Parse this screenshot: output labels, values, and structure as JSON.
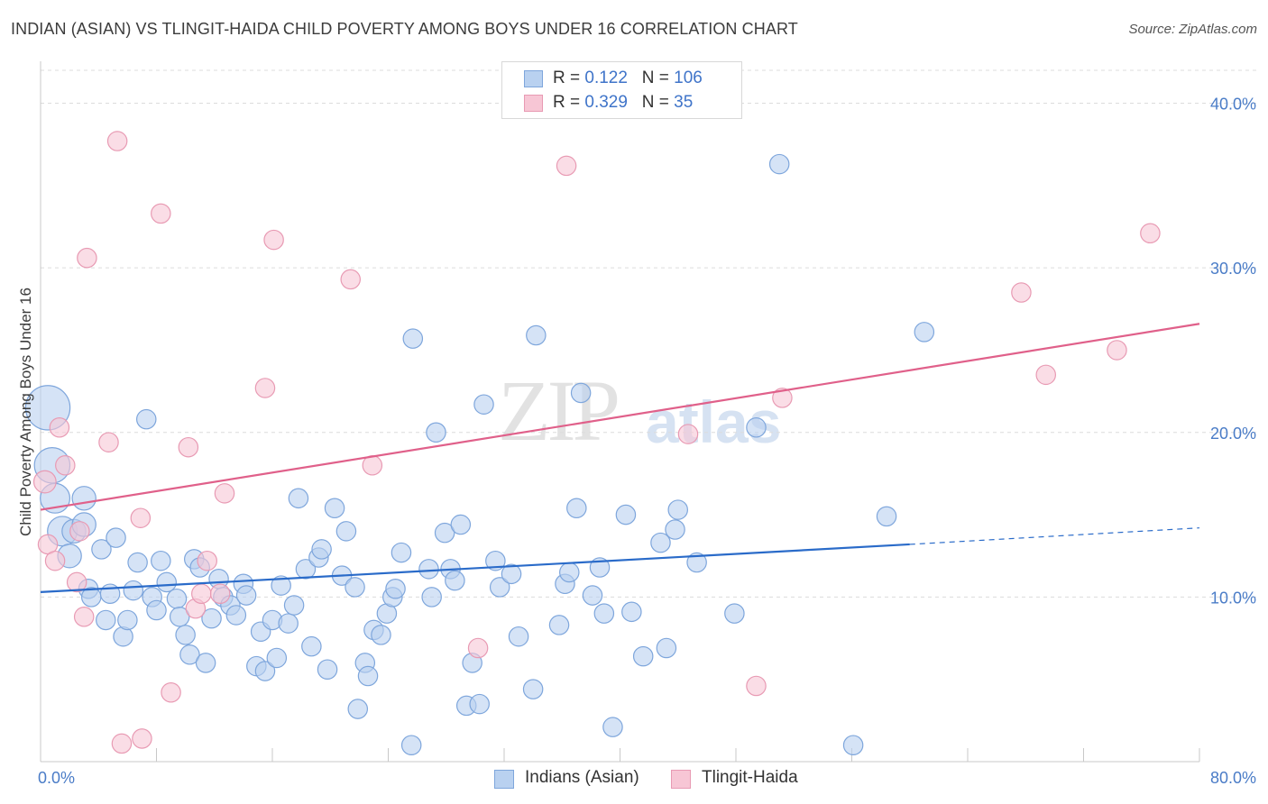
{
  "title": "INDIAN (ASIAN) VS TLINGIT-HAIDA CHILD POVERTY AMONG BOYS UNDER 16 CORRELATION CHART",
  "source": "Source: ZipAtlas.com",
  "watermark": {
    "zip": "ZIP",
    "atlas": "atlas"
  },
  "legend": {
    "row1": {
      "r_label": "R = ",
      "r_value": "0.122",
      "n_label": "N = ",
      "n_value": "106"
    },
    "row2": {
      "r_label": "R = ",
      "r_value": "0.329",
      "n_label": "N = ",
      "n_value": "35"
    }
  },
  "bottom_legend": {
    "series1": "Indians (Asian)",
    "series2": "Tlingit-Haida"
  },
  "colors": {
    "blue_fill": "#b9d1f0",
    "blue_stroke": "#7ea6dc",
    "blue_line": "#2a6bc9",
    "pink_fill": "#f7c6d5",
    "pink_stroke": "#e89ab3",
    "pink_line": "#e0608a",
    "axis_text": "#4a7cc7",
    "grid": "#dcdcdc"
  },
  "chart_data": {
    "type": "scatter",
    "title": "INDIAN (ASIAN) VS TLINGIT-HAIDA CHILD POVERTY AMONG BOYS UNDER 16 CORRELATION CHART",
    "xlabel": "",
    "ylabel": "Child Poverty Among Boys Under 16",
    "xlim": [
      0,
      80
    ],
    "ylim": [
      0,
      42
    ],
    "x_tick_labels": [
      "0.0%",
      "80.0%"
    ],
    "y_tick_labels": [
      "10.0%",
      "20.0%",
      "30.0%",
      "40.0%"
    ],
    "y_ticks": [
      10,
      20,
      30,
      40
    ],
    "grid": true,
    "legend_position": "top-center",
    "series": [
      {
        "name": "Indians (Asian)",
        "r": 0.122,
        "n": 106,
        "trend": {
          "x0": 0,
          "y0": 10.3,
          "x1": 60,
          "y1": 13.2,
          "dash_to_x": 80,
          "dash_to_y": 14.2
        },
        "points": [
          [
            0.5,
            21.5,
            3
          ],
          [
            0.8,
            18,
            2.4
          ],
          [
            1,
            16,
            2
          ],
          [
            1.5,
            14,
            2
          ],
          [
            2,
            12.5,
            1.6
          ],
          [
            2.3,
            14,
            1.6
          ],
          [
            3,
            16,
            1.6
          ],
          [
            3,
            14.4,
            1.6
          ],
          [
            3.3,
            10.5,
            1.3
          ],
          [
            3.5,
            10,
            1.3
          ],
          [
            4.2,
            12.9,
            1.3
          ],
          [
            4.5,
            8.6,
            1.3
          ],
          [
            4.8,
            10.2,
            1.3
          ],
          [
            5.2,
            13.6,
            1.3
          ],
          [
            5.7,
            7.6,
            1.3
          ],
          [
            6,
            8.6,
            1.3
          ],
          [
            6.4,
            10.4,
            1.3
          ],
          [
            6.7,
            12.1,
            1.3
          ],
          [
            7.3,
            20.8,
            1.3
          ],
          [
            7.7,
            10,
            1.3
          ],
          [
            8,
            9.2,
            1.3
          ],
          [
            8.3,
            12.2,
            1.3
          ],
          [
            8.7,
            10.9,
            1.3
          ],
          [
            9.4,
            9.9,
            1.3
          ],
          [
            9.6,
            8.8,
            1.3
          ],
          [
            10,
            7.7,
            1.3
          ],
          [
            10.3,
            6.5,
            1.3
          ],
          [
            10.6,
            12.3,
            1.3
          ],
          [
            11,
            11.8,
            1.3
          ],
          [
            11.4,
            6,
            1.3
          ],
          [
            11.8,
            8.7,
            1.3
          ],
          [
            12.3,
            11.1,
            1.3
          ],
          [
            12.6,
            10,
            1.3
          ],
          [
            13.1,
            9.5,
            1.3
          ],
          [
            13.5,
            8.9,
            1.3
          ],
          [
            14,
            10.8,
            1.3
          ],
          [
            14.2,
            10.1,
            1.3
          ],
          [
            14.9,
            5.8,
            1.3
          ],
          [
            15.2,
            7.9,
            1.3
          ],
          [
            15.5,
            5.5,
            1.3
          ],
          [
            16,
            8.6,
            1.3
          ],
          [
            16.3,
            6.3,
            1.3
          ],
          [
            16.6,
            10.7,
            1.3
          ],
          [
            17.1,
            8.4,
            1.3
          ],
          [
            17.5,
            9.5,
            1.3
          ],
          [
            17.8,
            16,
            1.3
          ],
          [
            18.3,
            11.7,
            1.3
          ],
          [
            18.7,
            7,
            1.3
          ],
          [
            19.2,
            12.4,
            1.3
          ],
          [
            19.4,
            12.9,
            1.3
          ],
          [
            19.8,
            5.6,
            1.3
          ],
          [
            20.3,
            15.4,
            1.3
          ],
          [
            20.8,
            11.3,
            1.3
          ],
          [
            21.1,
            14,
            1.3
          ],
          [
            21.7,
            10.6,
            1.3
          ],
          [
            21.9,
            3.2,
            1.3
          ],
          [
            22.4,
            6,
            1.3
          ],
          [
            22.6,
            5.2,
            1.3
          ],
          [
            23,
            8,
            1.3
          ],
          [
            23.5,
            7.7,
            1.3
          ],
          [
            23.9,
            9,
            1.3
          ],
          [
            24.3,
            10,
            1.3
          ],
          [
            24.5,
            10.5,
            1.3
          ],
          [
            24.9,
            12.7,
            1.3
          ],
          [
            25.6,
            1,
            1.3
          ],
          [
            25.7,
            25.7,
            1.3
          ],
          [
            26.8,
            11.7,
            1.3
          ],
          [
            27,
            10,
            1.3
          ],
          [
            27.3,
            20,
            1.3
          ],
          [
            27.9,
            13.9,
            1.3
          ],
          [
            28.3,
            11.7,
            1.3
          ],
          [
            28.6,
            11,
            1.3
          ],
          [
            29,
            14.4,
            1.3
          ],
          [
            29.4,
            3.4,
            1.3
          ],
          [
            29.8,
            6,
            1.3
          ],
          [
            30.3,
            3.5,
            1.3
          ],
          [
            30.6,
            21.7,
            1.3
          ],
          [
            31.4,
            12.2,
            1.3
          ],
          [
            31.7,
            10.6,
            1.3
          ],
          [
            32.5,
            11.4,
            1.3
          ],
          [
            33,
            7.6,
            1.3
          ],
          [
            34,
            4.4,
            1.3
          ],
          [
            34.2,
            25.9,
            1.3
          ],
          [
            35.8,
            8.3,
            1.3
          ],
          [
            36.2,
            10.8,
            1.3
          ],
          [
            36.5,
            11.5,
            1.3
          ],
          [
            37,
            15.4,
            1.3
          ],
          [
            37.3,
            22.4,
            1.3
          ],
          [
            38.1,
            10.1,
            1.3
          ],
          [
            38.6,
            11.8,
            1.3
          ],
          [
            38.9,
            9,
            1.3
          ],
          [
            39.5,
            2.1,
            1.3
          ],
          [
            40.4,
            15,
            1.3
          ],
          [
            40.8,
            9.1,
            1.3
          ],
          [
            41.6,
            6.4,
            1.3
          ],
          [
            42.8,
            13.3,
            1.3
          ],
          [
            43.2,
            6.9,
            1.3
          ],
          [
            43.8,
            14.1,
            1.3
          ],
          [
            44,
            15.3,
            1.3
          ],
          [
            45.3,
            12.1,
            1.3
          ],
          [
            47.9,
            9,
            1.3
          ],
          [
            49.4,
            20.3,
            1.3
          ],
          [
            51,
            36.3,
            1.3
          ],
          [
            58.4,
            14.9,
            1.3
          ],
          [
            56.1,
            1,
            1.3
          ],
          [
            61,
            26.1,
            1.3
          ]
        ]
      },
      {
        "name": "Tlingit-Haida",
        "r": 0.329,
        "n": 35,
        "trend": {
          "x0": 0,
          "y0": 15.3,
          "x1": 80,
          "y1": 26.6
        },
        "points": [
          [
            0.3,
            17,
            1.5
          ],
          [
            0.5,
            13.2,
            1.3
          ],
          [
            1,
            12.2,
            1.3
          ],
          [
            1.3,
            20.3,
            1.3
          ],
          [
            1.7,
            18.0,
            1.3
          ],
          [
            2.5,
            10.9,
            1.3
          ],
          [
            2.7,
            14.0,
            1.3
          ],
          [
            3,
            8.8,
            1.3
          ],
          [
            3.2,
            30.6,
            1.3
          ],
          [
            4.7,
            19.4,
            1.3
          ],
          [
            5.3,
            37.7,
            1.3
          ],
          [
            5.6,
            1.1,
            1.3
          ],
          [
            6.9,
            14.8,
            1.3
          ],
          [
            7,
            1.4,
            1.3
          ],
          [
            8.3,
            33.3,
            1.3
          ],
          [
            9,
            4.2,
            1.3
          ],
          [
            10.2,
            19.1,
            1.3
          ],
          [
            10.7,
            9.3,
            1.3
          ],
          [
            11.1,
            10.2,
            1.3
          ],
          [
            11.5,
            12.2,
            1.3
          ],
          [
            12.4,
            10.2,
            1.3
          ],
          [
            12.7,
            16.3,
            1.3
          ],
          [
            15.5,
            22.7,
            1.3
          ],
          [
            16.1,
            31.7,
            1.3
          ],
          [
            21.4,
            29.3,
            1.3
          ],
          [
            22.9,
            18.0,
            1.3
          ],
          [
            30.2,
            6.9,
            1.3
          ],
          [
            36.3,
            36.2,
            1.3
          ],
          [
            44.7,
            19.9,
            1.3
          ],
          [
            49.4,
            4.6,
            1.3
          ],
          [
            51.2,
            22.1,
            1.3
          ],
          [
            67.7,
            28.5,
            1.3
          ],
          [
            69.4,
            23.5,
            1.3
          ],
          [
            74.3,
            25.0,
            1.3
          ],
          [
            76.6,
            32.1,
            1.3
          ]
        ]
      }
    ]
  }
}
